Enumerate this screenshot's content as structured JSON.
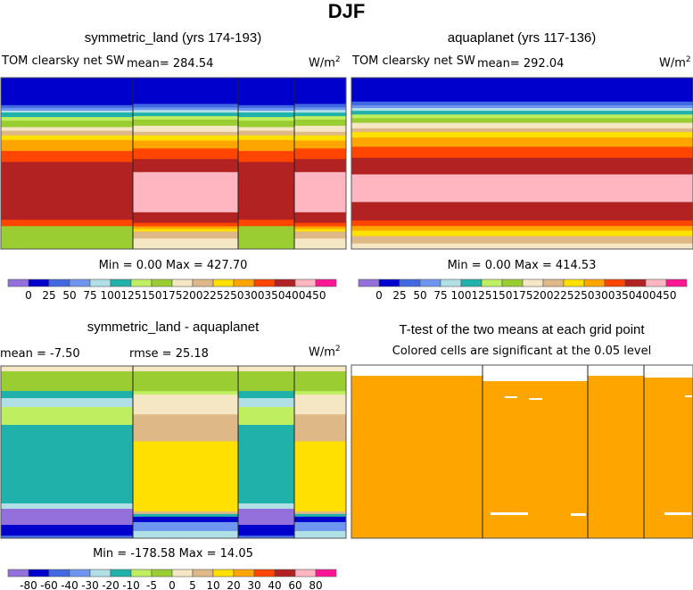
{
  "title": "DJF",
  "palette": [
    "#9370DB",
    "#0000CD",
    "#4169E1",
    "#6F96EE",
    "#B0E0E6",
    "#20B2AA",
    "#BFEF60",
    "#9ACD32",
    "#F5E6C4",
    "#DEB887",
    "#FFE000",
    "#FFA500",
    "#FF4500",
    "#B22222",
    "#FFB6C1",
    "#FF1493"
  ],
  "chart_data": [
    {
      "type": "heatmap",
      "title": "symmetric_land (yrs 174-193)",
      "variable": "TOM clearsky net SW",
      "mean_label": "mean= 284.54",
      "units": "W/m",
      "units_sup": "2",
      "minmax": "Min =    0.00 Max = 427.70",
      "levels": [
        "0",
        "25",
        "50",
        "75",
        "100",
        "125",
        "150",
        "175",
        "200",
        "225",
        "250",
        "300",
        "350",
        "400",
        "450"
      ],
      "min": 0.0,
      "max": 427.7,
      "mean": 284.54
    },
    {
      "type": "heatmap",
      "title": "aquaplanet (yrs 117-136)",
      "variable": "TOM clearsky net SW",
      "mean_label": "mean= 292.04",
      "units": "W/m",
      "units_sup": "2",
      "minmax": "Min =    0.00 Max = 414.53",
      "levels": [
        "0",
        "25",
        "50",
        "75",
        "100",
        "125",
        "150",
        "175",
        "200",
        "225",
        "250",
        "300",
        "350",
        "400",
        "450"
      ],
      "min": 0.0,
      "max": 414.53,
      "mean": 292.04
    },
    {
      "type": "heatmap",
      "title": "symmetric_land - aquaplanet",
      "mean_label": "mean =  -7.50",
      "rmse_label": "rmse =  25.18",
      "units": "W/m",
      "units_sup": "2",
      "minmax": "Min = -178.58 Max =  14.05",
      "levels": [
        "-80",
        "-60",
        "-40",
        "-30",
        "-20",
        "-10",
        "-5",
        "0",
        "5",
        "10",
        "20",
        "30",
        "40",
        "60",
        "80"
      ],
      "min": -178.58,
      "max": 14.05,
      "mean": -7.5,
      "rmse": 25.18
    },
    {
      "type": "heatmap",
      "title": "T-test of the two means at each grid point",
      "subtitle": "Colored cells are significant at the 0.05 level",
      "color": "#FFA500"
    }
  ]
}
